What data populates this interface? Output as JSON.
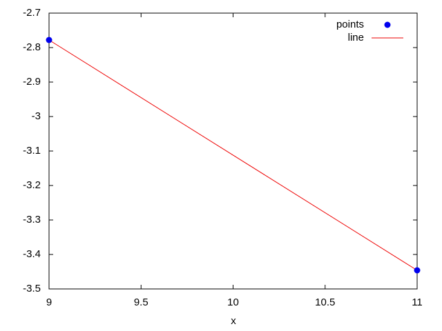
{
  "chart_data": {
    "type": "line",
    "xlabel": "x",
    "x": [
      9,
      11
    ],
    "series": [
      {
        "name": "points",
        "color": "#0000ee",
        "style": "points",
        "values": [
          -2.778,
          -3.446
        ]
      },
      {
        "name": "line",
        "color": "#ee0000",
        "style": "line",
        "values": [
          -2.778,
          -3.446
        ]
      }
    ],
    "xlim": [
      9,
      11
    ],
    "xticks": [
      9,
      9.5,
      10,
      10.5,
      11
    ],
    "ylim": [
      -3.5,
      -2.7
    ],
    "yticks": [
      -3.5,
      -3.4,
      -3.3,
      -3.2,
      -3.1,
      -3,
      -2.9,
      -2.8,
      -2.7
    ],
    "legend": "top-right",
    "grid": false
  }
}
